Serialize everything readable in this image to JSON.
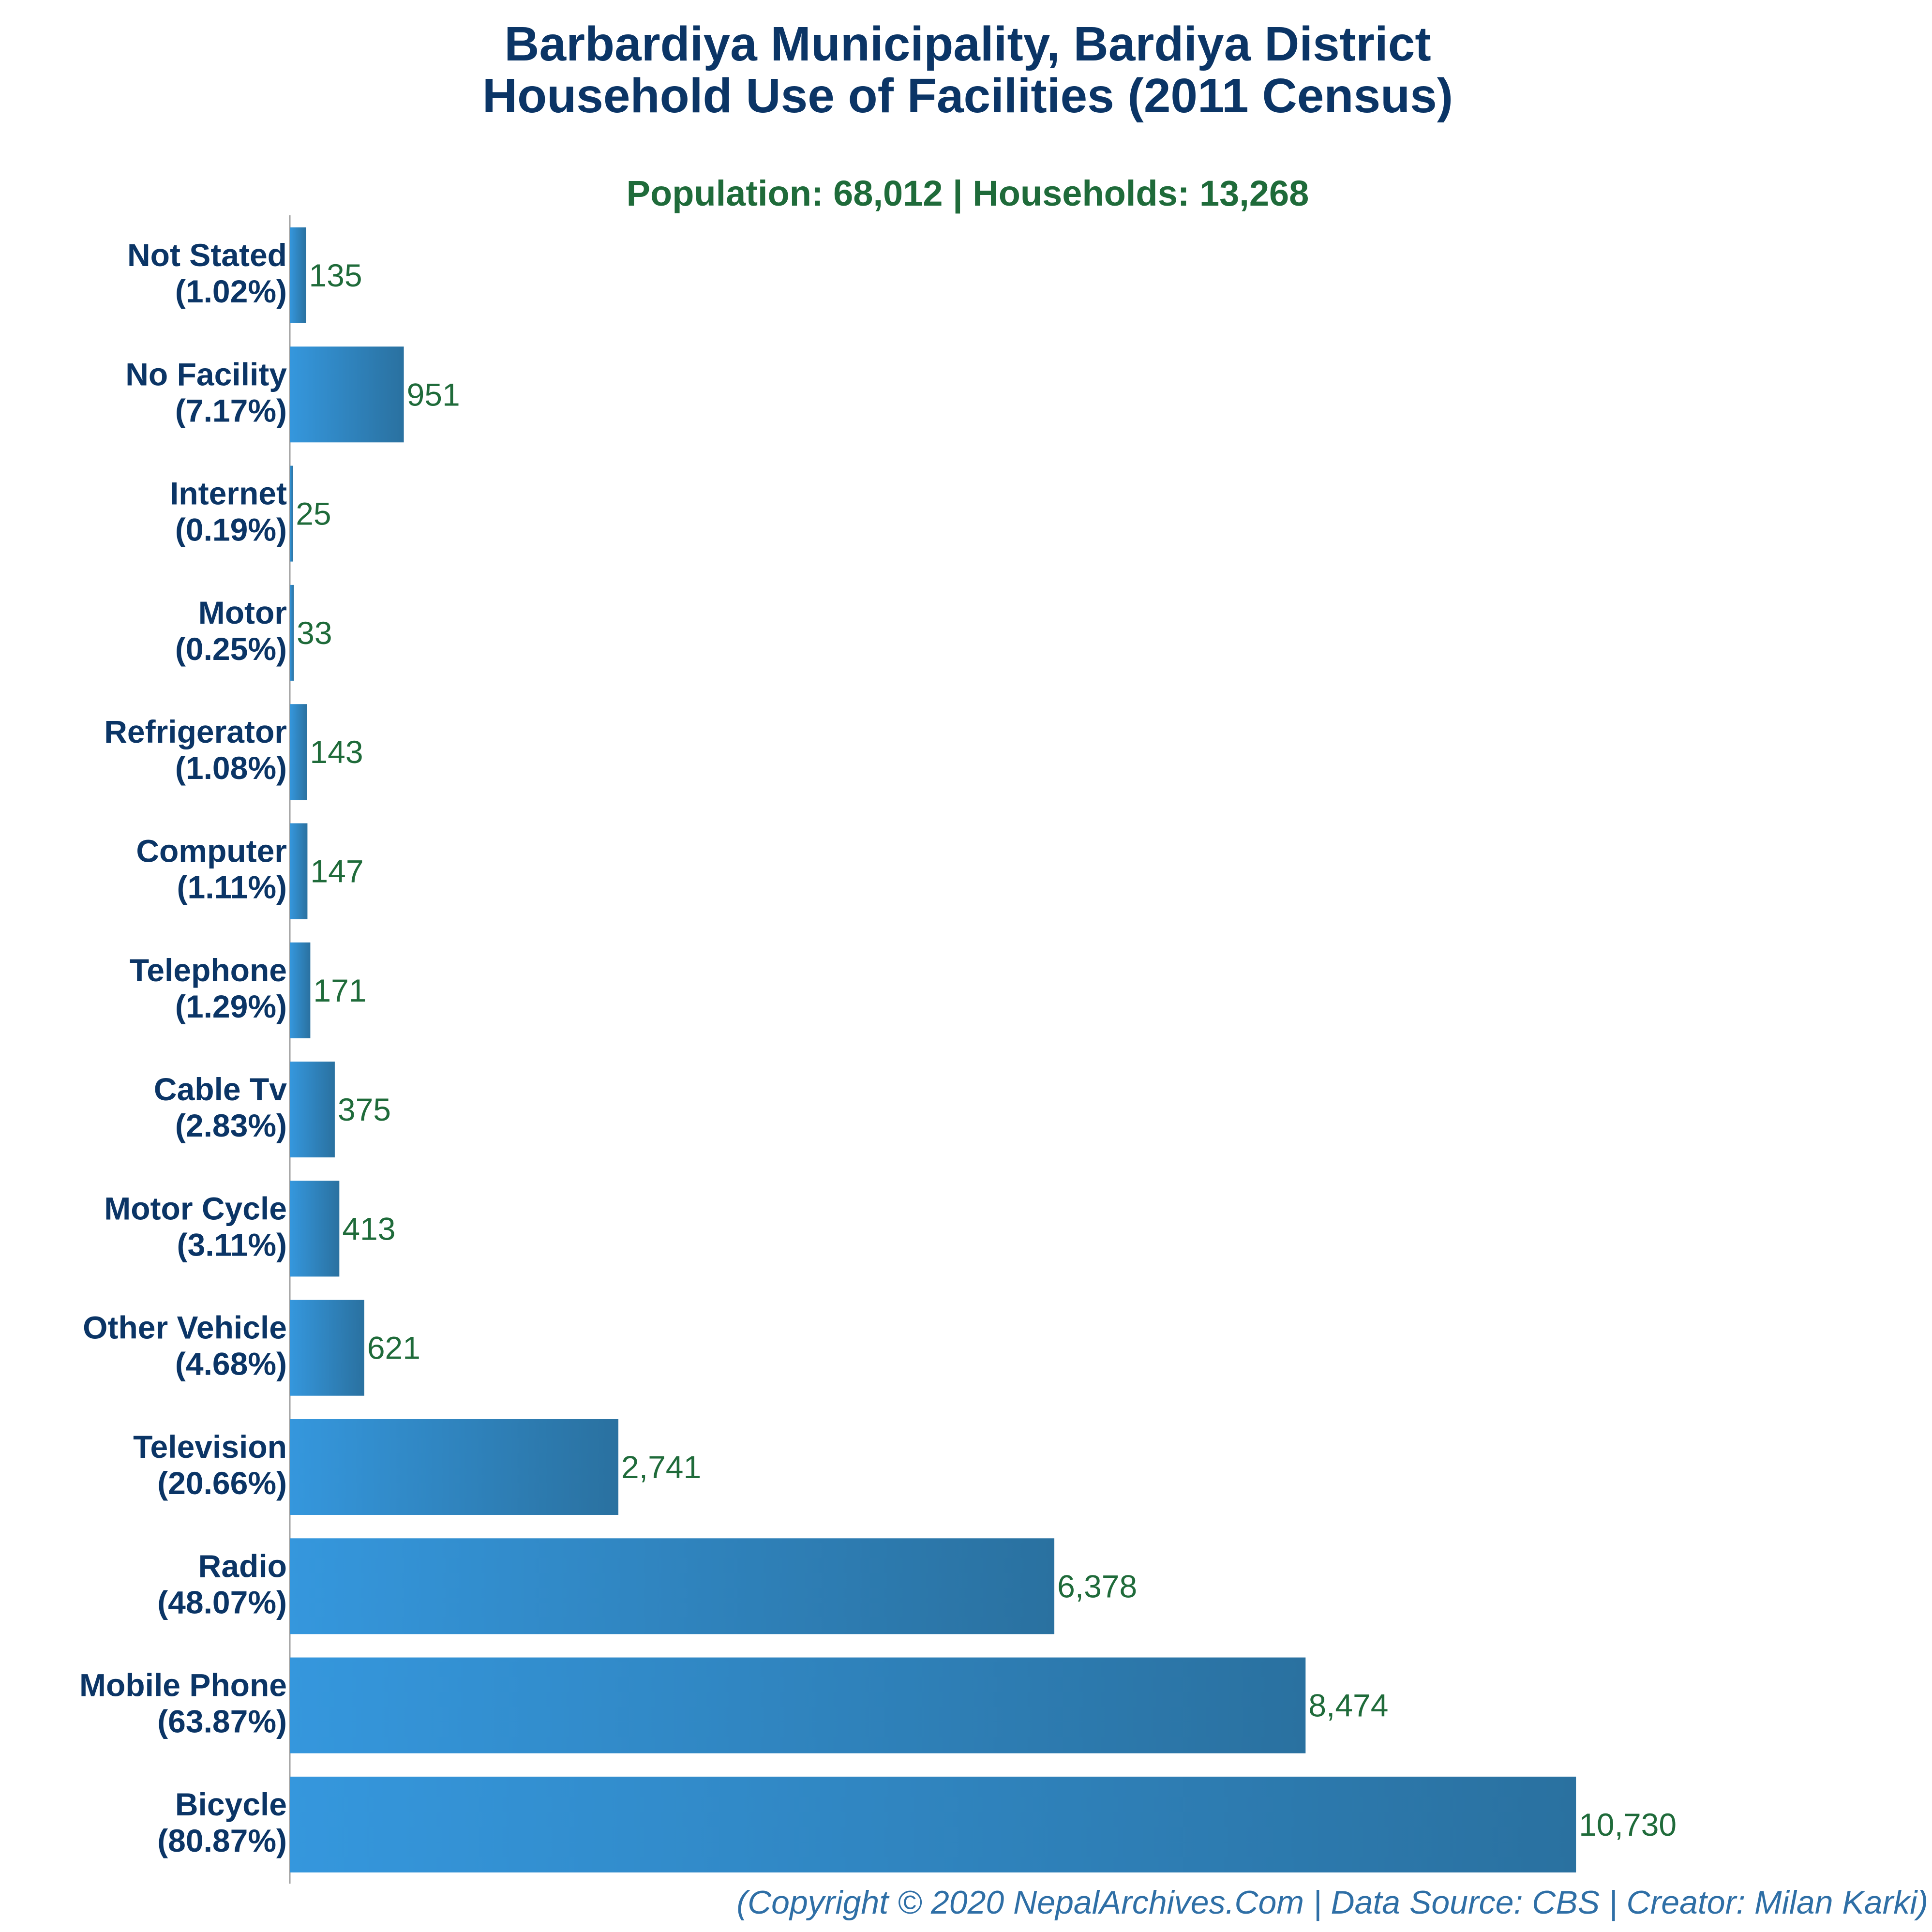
{
  "chart_data": {
    "type": "bar",
    "orientation": "horizontal",
    "title": "Barbardiya Municipality, Bardiya District",
    "title_line2": "Household Use of Facilities (2011 Census)",
    "subtitle": "Population: 68,012 | Households: 13,268",
    "footer": "(Copyright © 2020 NepalArchives.Com | Data Source: CBS | Creator: Milan Karki)",
    "categories": [
      "Not Stated",
      "No Facility",
      "Internet",
      "Motor",
      "Refrigerator",
      "Computer",
      "Telephone",
      "Cable Tv",
      "Motor Cycle",
      "Other Vehicle",
      "Television",
      "Radio",
      "Mobile Phone",
      "Bicycle"
    ],
    "percent_labels": [
      "(1.02%)",
      "(7.17%)",
      "(0.19%)",
      "(0.25%)",
      "(1.08%)",
      "(1.11%)",
      "(1.29%)",
      "(2.83%)",
      "(3.11%)",
      "(4.68%)",
      "(20.66%)",
      "(48.07%)",
      "(63.87%)",
      "(80.87%)"
    ],
    "values": [
      135,
      951,
      25,
      33,
      143,
      147,
      171,
      375,
      413,
      621,
      2741,
      6378,
      8474,
      10730
    ],
    "value_labels": [
      "135",
      "951",
      "25",
      "33",
      "143",
      "147",
      "171",
      "375",
      "413",
      "621",
      "2,741",
      "6,378",
      "8,474",
      "10,730"
    ],
    "xlim": [
      0,
      13700
    ],
    "grid": false,
    "colors": {
      "bar_light": "#3597dd",
      "bar_dark": "#2a71a0",
      "title": "#0b3566",
      "subtitle": "#1f6b3a",
      "value_text": "#1f6b3a",
      "footer": "#2f6fa6",
      "axis": "#a0a0a0"
    }
  }
}
